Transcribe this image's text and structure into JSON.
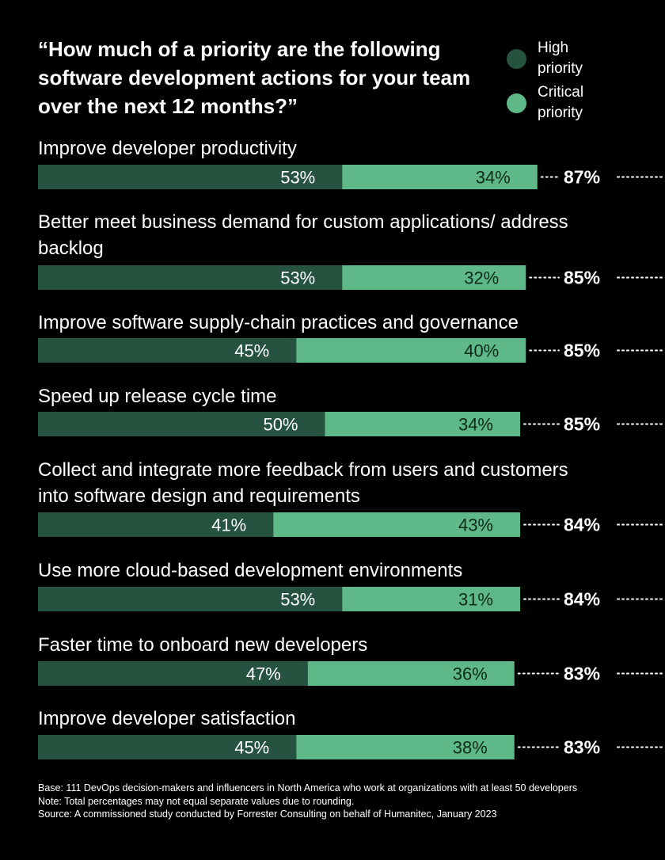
{
  "title": "“How much of a priority are the following software development actions for your team over the next 12 months?”",
  "legend": [
    {
      "label": "High priority",
      "color": "#25533f"
    },
    {
      "label": "Critical priority",
      "color": "#5fb887"
    }
  ],
  "chart_data": {
    "type": "bar",
    "orientation": "horizontal",
    "stacked": true,
    "value_suffix": "%",
    "categories": [
      "Improve developer productivity",
      "Better meet business demand for custom applications/ address backlog",
      "Improve software supply-chain practices and governance",
      "Speed up release cycle time",
      "Collect and integrate more feedback from users and customers into software design and requirements",
      "Use more cloud-based development environments",
      "Faster time to onboard new developers",
      "Improve developer satisfaction"
    ],
    "series": [
      {
        "name": "High priority",
        "color": "#25533f",
        "values": [
          53,
          53,
          45,
          50,
          41,
          53,
          47,
          45
        ]
      },
      {
        "name": "Critical priority",
        "color": "#5fb887",
        "values": [
          34,
          32,
          40,
          34,
          43,
          31,
          36,
          38
        ]
      }
    ],
    "totals": [
      87,
      85,
      85,
      85,
      84,
      84,
      83,
      83
    ]
  },
  "footer": {
    "base": "Base: 111 DevOps decision-makers and influencers in North America who work at organizations with at least 50 developers",
    "note": "Note: Total percentages may not equal separate values due to rounding.",
    "source": "Source: A commissioned study conducted by Forrester Consulting on behalf of Humanitec, January 2023"
  }
}
